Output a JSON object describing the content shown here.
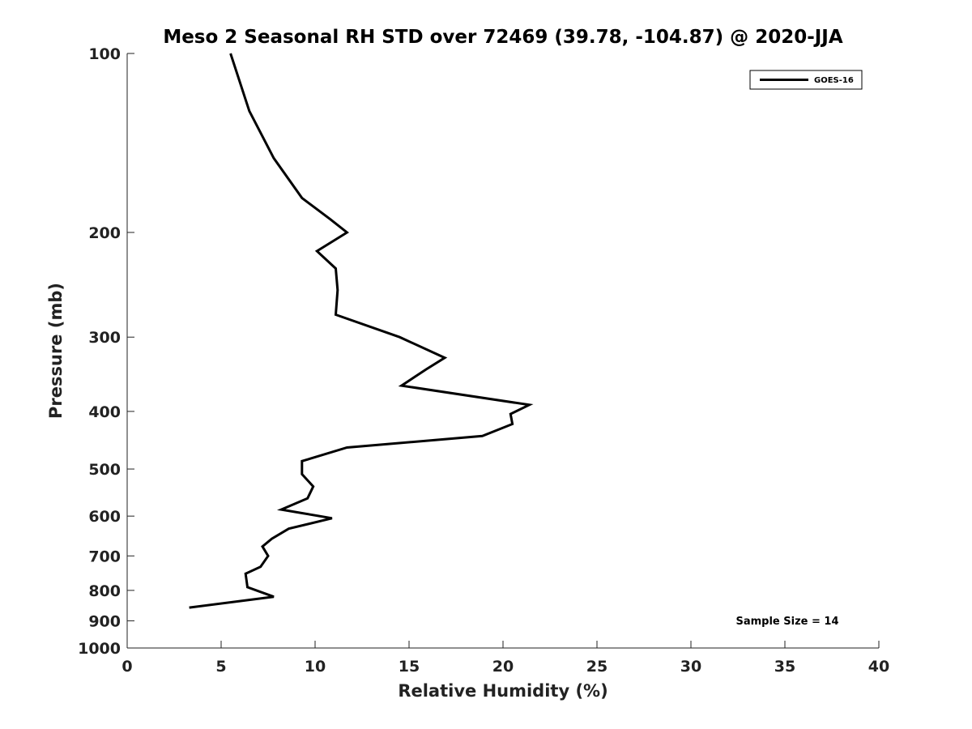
{
  "chart_data": {
    "type": "line",
    "title": "Meso 2 Seasonal RH STD over 72469 (39.78, -104.87) @ 2020-JJA",
    "xlabel": "Relative Humidity (%)",
    "ylabel": "Pressure (mb)",
    "xlim": [
      0,
      40
    ],
    "ylim": [
      100,
      1000
    ],
    "y_scale": "log",
    "y_inverted": true,
    "grid": false,
    "xticks": [
      "0",
      "5",
      "10",
      "15",
      "20",
      "25",
      "30",
      "35",
      "40"
    ],
    "yticks": [
      "100",
      "200",
      "300",
      "400",
      "500",
      "600",
      "700",
      "800",
      "900",
      "1000"
    ],
    "legend": {
      "placement": "top-right",
      "entries": [
        "GOES-16"
      ]
    },
    "annotation": "Sample Size = 14",
    "series": [
      {
        "name": "GOES-16",
        "color": "#000000",
        "points": [
          [
            5.5,
            100
          ],
          [
            6.5,
            125
          ],
          [
            7.8,
            150
          ],
          [
            9.3,
            175
          ],
          [
            10.8,
            190
          ],
          [
            11.7,
            200
          ],
          [
            10.1,
            215
          ],
          [
            11.1,
            230
          ],
          [
            11.2,
            250
          ],
          [
            11.1,
            275
          ],
          [
            14.5,
            300
          ],
          [
            16.9,
            325
          ],
          [
            15.9,
            340
          ],
          [
            14.6,
            362
          ],
          [
            21.4,
            390
          ],
          [
            20.4,
            404
          ],
          [
            20.5,
            420
          ],
          [
            18.9,
            440
          ],
          [
            11.7,
            460
          ],
          [
            9.3,
            485
          ],
          [
            9.3,
            510
          ],
          [
            9.9,
            535
          ],
          [
            9.6,
            560
          ],
          [
            8.2,
            585
          ],
          [
            10.9,
            605
          ],
          [
            8.6,
            630
          ],
          [
            7.7,
            655
          ],
          [
            7.2,
            675
          ],
          [
            7.5,
            700
          ],
          [
            7.1,
            730
          ],
          [
            6.3,
            750
          ],
          [
            6.4,
            790
          ],
          [
            7.8,
            820
          ],
          [
            3.3,
            855
          ]
        ]
      }
    ]
  }
}
